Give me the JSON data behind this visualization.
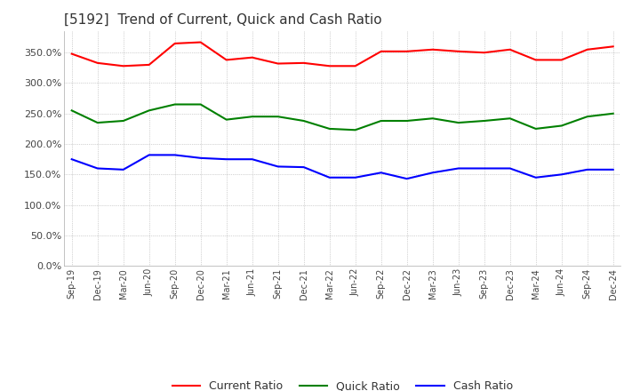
{
  "title": "[5192]  Trend of Current, Quick and Cash Ratio",
  "title_fontsize": 11,
  "ylim": [
    0.0,
    3.85
  ],
  "yticks": [
    0.0,
    0.5,
    1.0,
    1.5,
    2.0,
    2.5,
    3.0,
    3.5
  ],
  "ytick_labels": [
    "0.0%",
    "50.0%",
    "100.0%",
    "150.0%",
    "200.0%",
    "250.0%",
    "300.0%",
    "350.0%"
  ],
  "background_color": "#ffffff",
  "plot_bg_color": "#ffffff",
  "grid_color": "#aaaaaa",
  "dates": [
    "Sep-19",
    "Dec-19",
    "Mar-20",
    "Jun-20",
    "Sep-20",
    "Dec-20",
    "Mar-21",
    "Jun-21",
    "Sep-21",
    "Dec-21",
    "Mar-22",
    "Jun-22",
    "Sep-22",
    "Dec-22",
    "Mar-23",
    "Jun-23",
    "Sep-23",
    "Dec-23",
    "Mar-24",
    "Jun-24",
    "Sep-24",
    "Dec-24"
  ],
  "current_ratio": [
    3.48,
    3.33,
    3.28,
    3.3,
    3.65,
    3.67,
    3.38,
    3.42,
    3.32,
    3.33,
    3.28,
    3.28,
    3.52,
    3.52,
    3.55,
    3.52,
    3.5,
    3.55,
    3.38,
    3.38,
    3.55,
    3.6
  ],
  "quick_ratio": [
    2.55,
    2.35,
    2.38,
    2.55,
    2.65,
    2.65,
    2.4,
    2.45,
    2.45,
    2.38,
    2.25,
    2.23,
    2.38,
    2.38,
    2.42,
    2.35,
    2.38,
    2.42,
    2.25,
    2.3,
    2.45,
    2.5
  ],
  "cash_ratio": [
    1.75,
    1.6,
    1.58,
    1.82,
    1.82,
    1.77,
    1.75,
    1.75,
    1.63,
    1.62,
    1.45,
    1.45,
    1.53,
    1.43,
    1.53,
    1.6,
    1.6,
    1.6,
    1.45,
    1.5,
    1.58,
    1.58
  ],
  "current_color": "#ff0000",
  "quick_color": "#008000",
  "cash_color": "#0000ff",
  "line_width": 1.5,
  "legend_labels": [
    "Current Ratio",
    "Quick Ratio",
    "Cash Ratio"
  ]
}
